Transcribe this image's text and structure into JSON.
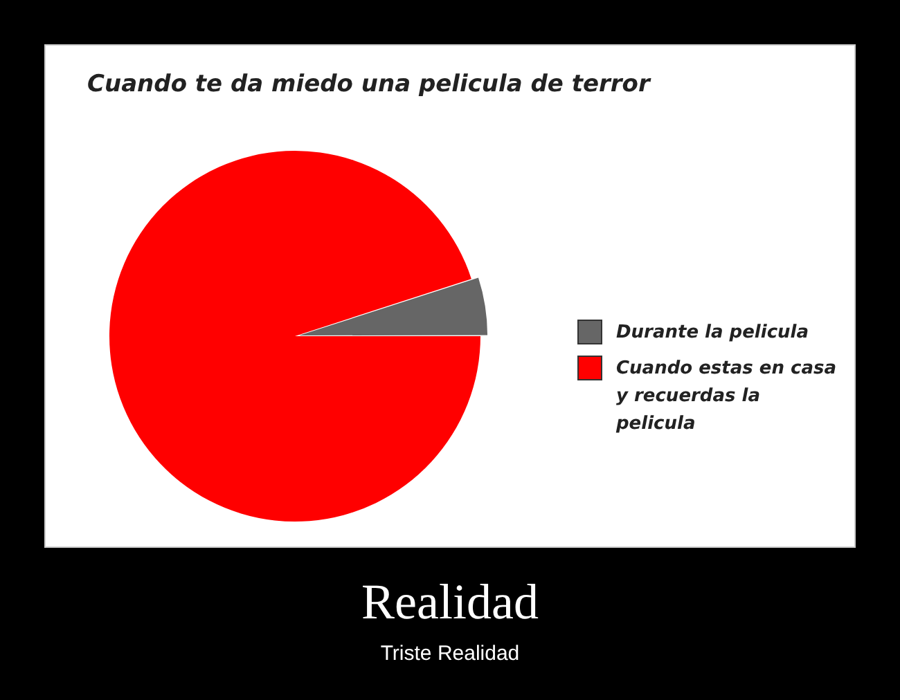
{
  "chart_data": {
    "type": "pie",
    "title": "Cuando te da miedo una pelicula de terror",
    "categories": [
      "Durante la pelicula",
      "Cuando estas en casa y recuerdas la pelicula"
    ],
    "values": [
      5,
      95
    ],
    "colors": [
      "#666666",
      "#ff0000"
    ],
    "legend": "right",
    "annotations": [
      "Realidad",
      "Triste Realidad"
    ]
  }
}
